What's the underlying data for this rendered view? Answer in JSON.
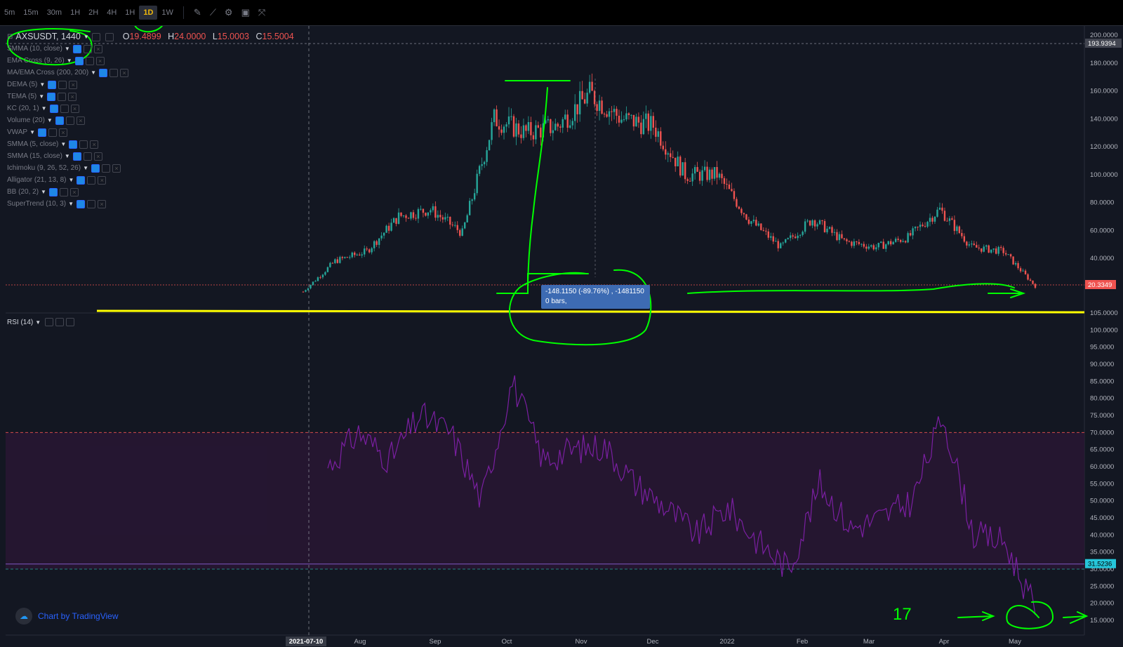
{
  "toolbar": {
    "timeframes": [
      "5m",
      "15m",
      "30m",
      "1H",
      "2H",
      "4H",
      "1H",
      "1D",
      "1W"
    ],
    "active_timeframe": "1D",
    "icons": [
      "pencil-icon",
      "indicator-chart-icon",
      "gear-icon",
      "save-icon",
      "fullscreen-icon"
    ]
  },
  "legend": {
    "symbol": "AXSUSDT, 1440",
    "ohlc": {
      "o_label": "O",
      "o": "19.4899",
      "h_label": "H",
      "h": "24.0000",
      "l_label": "L",
      "l": "15.0003",
      "c_label": "C",
      "c": "15.5004"
    },
    "indicators": [
      "SMMA (10, close)",
      "EMA Cross (9, 26)",
      "MA/EMA Cross (200, 200)",
      "DEMA (5)",
      "TEMA (5)",
      "KC (20, 1)",
      "Volume (20)",
      "VWAP",
      "SMMA (5, close)",
      "SMMA (15, close)",
      "Ichimoku (9, 26, 52, 26)",
      "Alligator (21, 13, 8)",
      "BB (20, 2)",
      "SuperTrend (10, 3)"
    ],
    "rsi": "RSI (14)"
  },
  "price_axis": [
    "200.0000",
    "180.0000",
    "160.0000",
    "140.0000",
    "120.0000",
    "100.0000",
    "80.0000",
    "60.0000",
    "40.0000"
  ],
  "price_tags": {
    "top": "193.9394",
    "current": "20.3349"
  },
  "rsi_axis": [
    "105.0000",
    "100.0000",
    "95.0000",
    "90.0000",
    "85.0000",
    "80.0000",
    "75.0000",
    "70.0000",
    "65.0000",
    "60.0000",
    "55.0000",
    "50.0000",
    "45.0000",
    "40.0000",
    "35.0000",
    "30.0000",
    "25.0000",
    "20.0000",
    "15.0000"
  ],
  "rsi_tag": "31.5236",
  "time_axis": {
    "cursor": "2021-07-10",
    "months": [
      "Aug",
      "Sep",
      "Oct",
      "Nov",
      "Dec",
      "2022",
      "Feb",
      "Mar",
      "Apr",
      "May"
    ]
  },
  "tooltip": {
    "line1": "-148.1150 (-89.76%) , -1481150",
    "line2": "0 bars,"
  },
  "watermark": "Chart by TradingView",
  "annotation": {
    "text": "17"
  },
  "colors": {
    "up": "#26a69a",
    "down": "#ef5350",
    "rsi": "#7b1fa2",
    "annotation": "#00ff00",
    "support": "#ffff00"
  },
  "chart_data": {
    "type": "candlestick",
    "title": "",
    "x": [
      "2021-07-10",
      "2021-07-20",
      "2021-08-01",
      "2021-08-15",
      "2021-09-01",
      "2021-09-15",
      "2021-10-01",
      "2021-10-10",
      "2021-10-20",
      "2021-11-01",
      "2021-11-10",
      "2021-11-20",
      "2021-12-01",
      "2021-12-15",
      "2022-01-01",
      "2022-01-15",
      "2022-02-01",
      "2022-02-15",
      "2022-03-01",
      "2022-03-15",
      "2022-03-25",
      "2022-04-10",
      "2022-04-25",
      "2022-05-10"
    ],
    "close": [
      16,
      38,
      45,
      70,
      75,
      58,
      140,
      130,
      135,
      158,
      140,
      135,
      100,
      100,
      68,
      48,
      68,
      52,
      48,
      55,
      75,
      48,
      45,
      20
    ],
    "ylim": [
      0,
      200
    ],
    "rsi": [
      60,
      70,
      62,
      75,
      70,
      50,
      85,
      62,
      65,
      66,
      55,
      48,
      40,
      48,
      38,
      30,
      55,
      42,
      45,
      50,
      75,
      40,
      38,
      18
    ],
    "rsi_ylim": [
      15,
      105
    ],
    "rsi_levels": [
      70,
      30
    ]
  }
}
